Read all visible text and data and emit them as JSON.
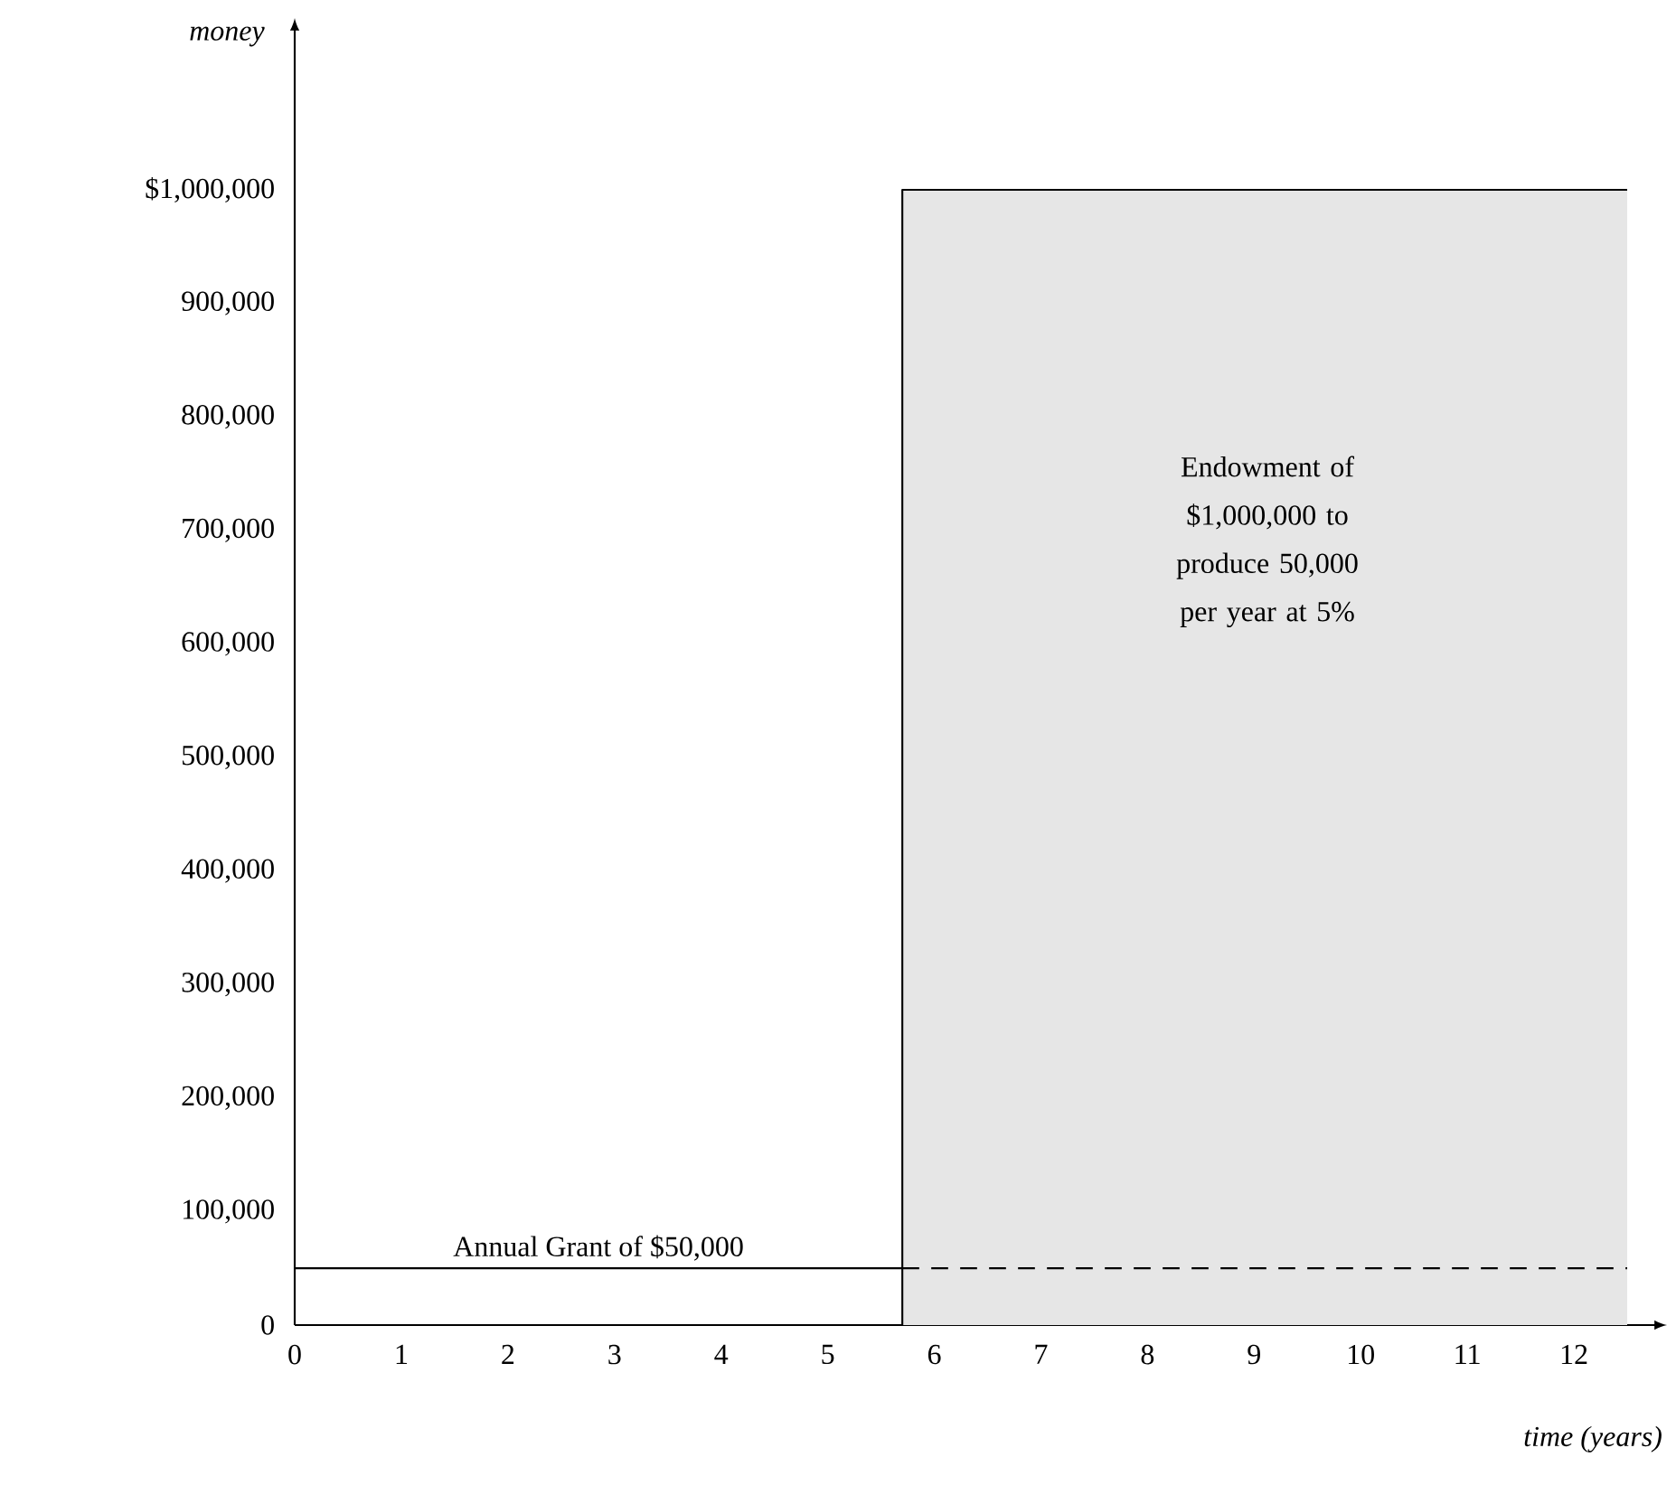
{
  "chart_data": {
    "type": "line",
    "xlabel": "time (years)",
    "ylabel": "money",
    "xlim": [
      0,
      12.5
    ],
    "ylim": [
      0,
      1000000
    ],
    "xticks": [
      0,
      1,
      2,
      3,
      4,
      5,
      6,
      7,
      8,
      9,
      10,
      11,
      12
    ],
    "yticks": [
      0,
      {
        "value": 100000,
        "label": "100,000"
      },
      {
        "value": 200000,
        "label": "200,000"
      },
      {
        "value": 300000,
        "label": "300,000"
      },
      {
        "value": 400000,
        "label": "400,000"
      },
      {
        "value": 500000,
        "label": "500,000"
      },
      {
        "value": 600000,
        "label": "600,000"
      },
      {
        "value": 700000,
        "label": "700,000"
      },
      {
        "value": 800000,
        "label": "800,000"
      },
      {
        "value": 900000,
        "label": "900,000"
      },
      {
        "value": 1000000,
        "label": "$1,000,000"
      }
    ],
    "series": [
      {
        "color": "#000000",
        "line_style": "solid",
        "x": [
          0,
          5.7,
          5.7,
          5.7,
          12.5
        ],
        "values": [
          50000,
          50000,
          0,
          1000000,
          1000000
        ]
      },
      {
        "color": "#000000",
        "line_style": "dashed",
        "x": [
          5.7,
          12.5
        ],
        "values": [
          50000,
          50000
        ]
      }
    ],
    "annotations": [
      {
        "text": "Annual Grant of $50,000",
        "x": 2.85,
        "y": 50000
      },
      "Endowment of $1,000,000 to produce 50,000 per year at 5%"
    ],
    "bands": [
      {
        "axis": "x",
        "from": 5.7,
        "to": 12.5,
        "color": "#e6e6e6"
      }
    ],
    "grid": false
  }
}
